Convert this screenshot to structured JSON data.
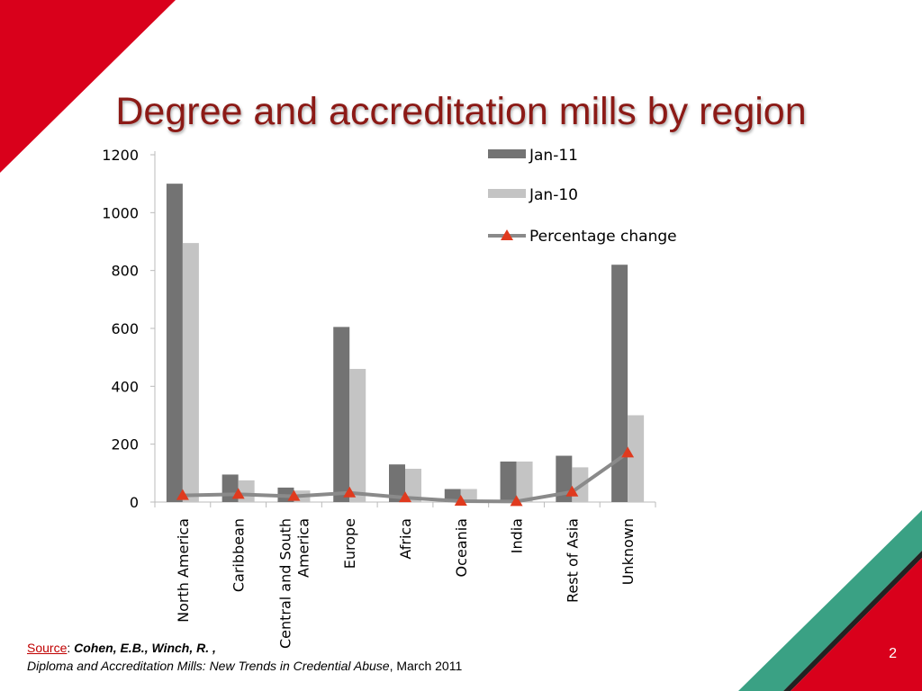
{
  "slide": {
    "title": "Degree and accreditation mills by region",
    "page_number": "2"
  },
  "source": {
    "label": "Source",
    "colon": ":",
    "authors": "Cohen, E.B., Winch, R. ,",
    "work": "Diploma and Accreditation Mills: New Trends in Credential Abuse",
    "date": ", March 2011"
  },
  "colors": {
    "brand_red": "#d9001b",
    "teal": "#3aa184",
    "title": "#8c1a16",
    "jan11": "#737373",
    "jan10": "#c4c4c4",
    "pct_line": "#8a8a8a",
    "pct_marker": "#e03a1e"
  },
  "chart_data": {
    "type": "bar",
    "title": "",
    "xlabel": "",
    "ylabel": "",
    "ylim": [
      0,
      1200
    ],
    "yticks": [
      "0",
      "200",
      "400",
      "600",
      "800",
      "1000",
      "1200"
    ],
    "grid": false,
    "legend_position": "top-right",
    "categories": [
      [
        "North America"
      ],
      [
        "Caribbean"
      ],
      [
        "Central and South",
        "America"
      ],
      [
        "Europe"
      ],
      [
        "Africa"
      ],
      [
        "Oceania"
      ],
      [
        "India"
      ],
      [
        "Rest of Asia"
      ],
      [
        "Unknown"
      ]
    ],
    "series": [
      {
        "name": "Jan-11",
        "kind": "bar",
        "values": [
          1100,
          95,
          50,
          605,
          130,
          45,
          140,
          160,
          820
        ]
      },
      {
        "name": "Jan-10",
        "kind": "bar",
        "values": [
          895,
          75,
          40,
          460,
          115,
          45,
          140,
          120,
          300
        ]
      },
      {
        "name": "Percentage change",
        "kind": "line",
        "values": [
          23,
          27,
          20,
          32,
          15,
          3,
          2,
          35,
          170
        ]
      }
    ]
  }
}
